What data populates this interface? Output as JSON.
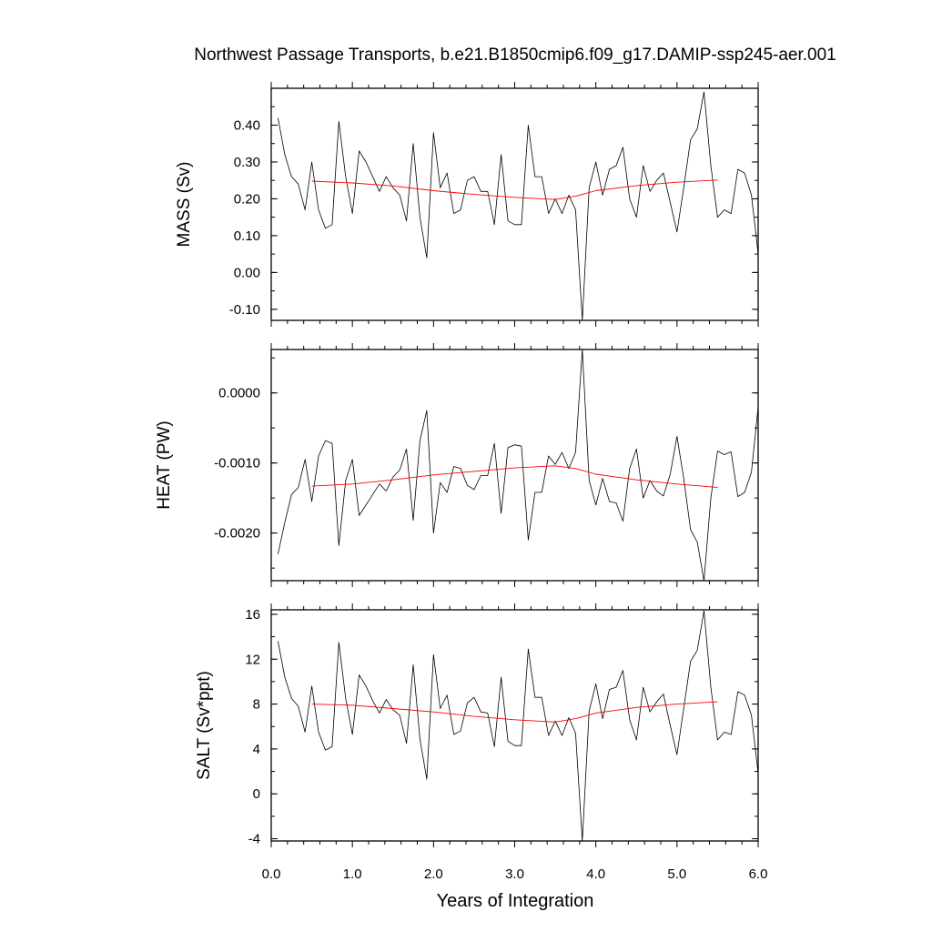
{
  "title": "Northwest Passage Transports, b.e21.B1850cmip6.f09_g17.DAMIP-ssp245-aer.001",
  "xlabel": "Years of Integration",
  "x_ticks": [
    "0.0",
    "1.0",
    "2.0",
    "3.0",
    "4.0",
    "5.0",
    "6.0"
  ],
  "colors": {
    "raw": "#000000",
    "smooth": "#ff0000",
    "frame": "#000000"
  },
  "chart_data": [
    {
      "type": "line",
      "ylabel": "MASS (Sv)",
      "xlim": [
        0,
        6
      ],
      "ylim": [
        -0.13,
        0.5
      ],
      "ytick_values": [
        -0.1,
        0.0,
        0.1,
        0.2,
        0.3,
        0.4
      ],
      "ytick_labels": [
        "-0.10",
        "0.00",
        "0.10",
        "0.20",
        "0.30",
        "0.40"
      ],
      "x": [
        0.083,
        0.167,
        0.25,
        0.333,
        0.417,
        0.5,
        0.583,
        0.667,
        0.75,
        0.833,
        0.917,
        1.0,
        1.083,
        1.167,
        1.25,
        1.333,
        1.417,
        1.5,
        1.583,
        1.667,
        1.75,
        1.833,
        1.917,
        2.0,
        2.083,
        2.167,
        2.25,
        2.333,
        2.417,
        2.5,
        2.583,
        2.667,
        2.75,
        2.833,
        2.917,
        3.0,
        3.083,
        3.167,
        3.25,
        3.333,
        3.417,
        3.5,
        3.583,
        3.667,
        3.75,
        3.833,
        3.917,
        4.0,
        4.083,
        4.167,
        4.25,
        4.333,
        4.417,
        4.5,
        4.583,
        4.667,
        4.75,
        4.833,
        4.917,
        5.0,
        5.083,
        5.167,
        5.25,
        5.333,
        5.417,
        5.5,
        5.583,
        5.667,
        5.75,
        5.833,
        5.917,
        6.0
      ],
      "series": [
        {
          "role": "raw",
          "values": [
            0.42,
            0.32,
            0.26,
            0.24,
            0.17,
            0.3,
            0.17,
            0.12,
            0.13,
            0.41,
            0.26,
            0.16,
            0.33,
            0.3,
            0.26,
            0.22,
            0.26,
            0.23,
            0.21,
            0.14,
            0.35,
            0.15,
            0.04,
            0.38,
            0.23,
            0.27,
            0.16,
            0.17,
            0.25,
            0.26,
            0.22,
            0.22,
            0.13,
            0.32,
            0.14,
            0.13,
            0.13,
            0.4,
            0.26,
            0.26,
            0.16,
            0.2,
            0.16,
            0.21,
            0.17,
            -0.13,
            0.23,
            0.3,
            0.21,
            0.28,
            0.29,
            0.34,
            0.2,
            0.15,
            0.29,
            0.22,
            0.25,
            0.27,
            0.19,
            0.11,
            0.23,
            0.36,
            0.39,
            0.49,
            0.29,
            0.15,
            0.17,
            0.16,
            0.28,
            0.27,
            0.21,
            0.05
          ]
        },
        {
          "role": "smooth",
          "x": [
            0.5,
            1.0,
            1.5,
            2.0,
            2.5,
            3.0,
            3.5,
            3.75,
            4.0,
            4.5,
            5.0,
            5.5
          ],
          "values": [
            0.248,
            0.243,
            0.235,
            0.222,
            0.212,
            0.204,
            0.198,
            0.207,
            0.222,
            0.236,
            0.245,
            0.251
          ]
        }
      ]
    },
    {
      "type": "line",
      "ylabel": "HEAT (PW)",
      "xlim": [
        0,
        6
      ],
      "ylim": [
        -0.00268,
        0.00062
      ],
      "ytick_values": [
        -0.002,
        -0.001,
        0.0
      ],
      "ytick_labels": [
        "-0.0020",
        "-0.0010",
        "0.0000"
      ],
      "x": [
        0.083,
        0.167,
        0.25,
        0.333,
        0.417,
        0.5,
        0.583,
        0.667,
        0.75,
        0.833,
        0.917,
        1.0,
        1.083,
        1.167,
        1.25,
        1.333,
        1.417,
        1.5,
        1.583,
        1.667,
        1.75,
        1.833,
        1.917,
        2.0,
        2.083,
        2.167,
        2.25,
        2.333,
        2.417,
        2.5,
        2.583,
        2.667,
        2.75,
        2.833,
        2.917,
        3.0,
        3.083,
        3.167,
        3.25,
        3.333,
        3.417,
        3.5,
        3.583,
        3.667,
        3.75,
        3.833,
        3.917,
        4.0,
        4.083,
        4.167,
        4.25,
        4.333,
        4.417,
        4.5,
        4.583,
        4.667,
        4.75,
        4.833,
        4.917,
        5.0,
        5.083,
        5.167,
        5.25,
        5.333,
        5.417,
        5.5,
        5.583,
        5.667,
        5.75,
        5.833,
        5.917,
        6.0
      ],
      "series": [
        {
          "role": "raw",
          "values": [
            -0.0023,
            -0.00185,
            -0.00145,
            -0.00135,
            -0.00095,
            -0.00155,
            -0.0009,
            -0.00068,
            -0.00072,
            -0.00218,
            -0.00125,
            -0.00095,
            -0.00175,
            -0.0016,
            -0.00145,
            -0.0013,
            -0.0014,
            -0.0012,
            -0.0011,
            -0.0008,
            -0.00182,
            -0.00068,
            -0.00025,
            -0.002,
            -0.00128,
            -0.00142,
            -0.00105,
            -0.00108,
            -0.00132,
            -0.00138,
            -0.00118,
            -0.00118,
            -0.00072,
            -0.00172,
            -0.00078,
            -0.00074,
            -0.00076,
            -0.0021,
            -0.00142,
            -0.00142,
            -0.0009,
            -0.00102,
            -0.00085,
            -0.00108,
            -0.00085,
            0.00062,
            -0.00125,
            -0.0016,
            -0.00122,
            -0.00155,
            -0.00157,
            -0.00183,
            -0.00108,
            -0.0008,
            -0.0015,
            -0.00125,
            -0.0014,
            -0.00147,
            -0.00116,
            -0.00062,
            -0.00122,
            -0.00195,
            -0.00213,
            -0.00268,
            -0.0015,
            -0.00083,
            -0.00088,
            -0.00084,
            -0.00148,
            -0.00142,
            -0.00113,
            -0.0002
          ]
        },
        {
          "role": "smooth",
          "x": [
            0.5,
            1.0,
            1.5,
            2.0,
            2.5,
            3.0,
            3.5,
            3.75,
            4.0,
            4.5,
            5.0,
            5.5
          ],
          "values": [
            -0.00133,
            -0.0013,
            -0.00124,
            -0.00117,
            -0.00112,
            -0.00107,
            -0.00104,
            -0.00108,
            -0.00116,
            -0.00124,
            -0.0013,
            -0.00135
          ]
        }
      ]
    },
    {
      "type": "line",
      "ylabel": "SALT (Sv*ppt)",
      "xlim": [
        0,
        6
      ],
      "ylim": [
        -4.2,
        16.4
      ],
      "ytick_values": [
        -4,
        0,
        4,
        8,
        12,
        16
      ],
      "ytick_labels": [
        "-4",
        "0",
        "4",
        "8",
        "12",
        "16"
      ],
      "x": [
        0.083,
        0.167,
        0.25,
        0.333,
        0.417,
        0.5,
        0.583,
        0.667,
        0.75,
        0.833,
        0.917,
        1.0,
        1.083,
        1.167,
        1.25,
        1.333,
        1.417,
        1.5,
        1.583,
        1.667,
        1.75,
        1.833,
        1.917,
        2.0,
        2.083,
        2.167,
        2.25,
        2.333,
        2.417,
        2.5,
        2.583,
        2.667,
        2.75,
        2.833,
        2.917,
        3.0,
        3.083,
        3.167,
        3.25,
        3.333,
        3.417,
        3.5,
        3.583,
        3.667,
        3.75,
        3.833,
        3.917,
        4.0,
        4.083,
        4.167,
        4.25,
        4.333,
        4.417,
        4.5,
        4.583,
        4.667,
        4.75,
        4.833,
        4.917,
        5.0,
        5.083,
        5.167,
        5.25,
        5.333,
        5.417,
        5.5,
        5.583,
        5.667,
        5.75,
        5.833,
        5.917,
        6.0
      ],
      "series": [
        {
          "role": "raw",
          "values": [
            13.6,
            10.4,
            8.5,
            7.8,
            5.5,
            9.6,
            5.5,
            3.9,
            4.2,
            13.5,
            8.5,
            5.3,
            10.6,
            9.6,
            8.3,
            7.2,
            8.4,
            7.5,
            7.0,
            4.5,
            11.5,
            4.9,
            1.3,
            12.4,
            7.6,
            8.8,
            5.3,
            5.6,
            8.1,
            8.6,
            7.3,
            7.2,
            4.2,
            10.4,
            4.7,
            4.3,
            4.3,
            12.9,
            8.6,
            8.6,
            5.2,
            6.5,
            5.2,
            6.8,
            5.4,
            -4.2,
            7.4,
            9.8,
            6.7,
            9.3,
            9.5,
            11.0,
            6.6,
            4.8,
            9.5,
            7.3,
            8.2,
            8.9,
            6.1,
            3.5,
            7.6,
            11.8,
            12.8,
            16.3,
            9.5,
            4.8,
            5.5,
            5.3,
            9.1,
            8.8,
            7.0,
            1.8
          ]
        },
        {
          "role": "smooth",
          "x": [
            0.5,
            1.0,
            1.5,
            2.0,
            2.5,
            3.0,
            3.5,
            3.75,
            4.0,
            4.5,
            5.0,
            5.5
          ],
          "values": [
            8.0,
            7.9,
            7.6,
            7.3,
            6.9,
            6.6,
            6.4,
            6.7,
            7.2,
            7.7,
            8.0,
            8.2
          ]
        }
      ]
    }
  ]
}
